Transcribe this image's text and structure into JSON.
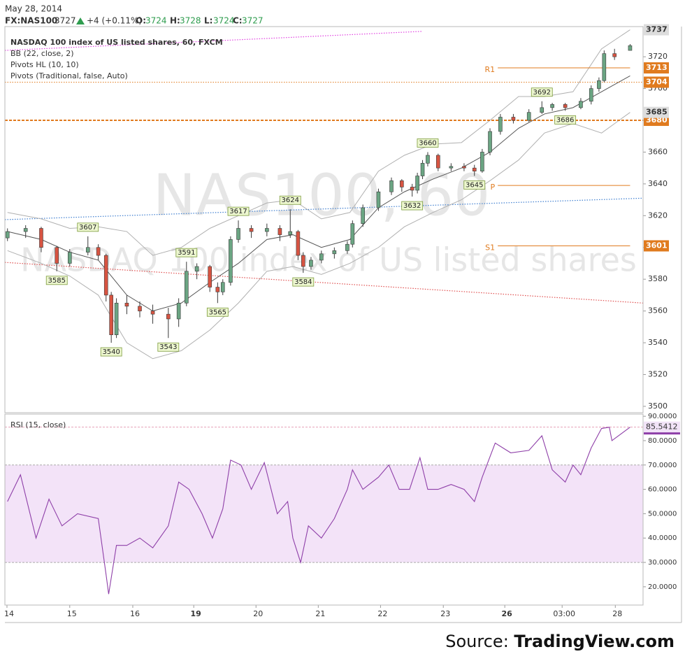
{
  "header": {
    "date": "May 28, 2014",
    "symbol": "FX:NAS100",
    "last": 3727,
    "change": "+4 (+0.11%)",
    "open_label": "O:",
    "open": 3724,
    "high_label": "H:",
    "high": 3728,
    "low_label": "L:",
    "low": 3724,
    "close_label": "C:",
    "close": 3727
  },
  "source": {
    "prefix": "Source:",
    "name": "TradingView.com"
  },
  "chart_data": [
    {
      "type": "candlestick",
      "title": "NASDAQ 100 index of US listed shares, 60, FXCM",
      "legend": [
        "BB (22, close, 2)",
        "Pivots HL (10, 10)",
        "Pivots (Traditional, false, Auto)"
      ],
      "watermark": [
        "NAS100, 60",
        "NASDAQ 100 index of US listed shares"
      ],
      "x": [
        1,
        8,
        14,
        20,
        25,
        32,
        36,
        39,
        41,
        43,
        47,
        52,
        57,
        63,
        67,
        70,
        74,
        79,
        82,
        84,
        87,
        90,
        95,
        101,
        106,
        110,
        113,
        115,
        118,
        122,
        127,
        132,
        134,
        138,
        144,
        149,
        153,
        157,
        159,
        161,
        163,
        167,
        172,
        177,
        181,
        184,
        187,
        191,
        196,
        202,
        207,
        211,
        216,
        222,
        226,
        229,
        231,
        235,
        241
      ],
      "open": [
        3606,
        3610,
        3612,
        3600,
        3590,
        3597,
        3600,
        3595,
        3570,
        3545,
        3565,
        3563,
        3560,
        3558,
        3555,
        3565,
        3585,
        3588,
        3575,
        3572,
        3578,
        3605,
        3612,
        3610,
        3612,
        3608,
        3610,
        3595,
        3588,
        3592,
        3596,
        3598,
        3602,
        3615,
        3625,
        3635,
        3642,
        3638,
        3636,
        3645,
        3653,
        3658,
        3650,
        3651,
        3650,
        3648,
        3660,
        3673,
        3682,
        3680,
        3685,
        3688,
        3690,
        3688,
        3692,
        3700,
        3705,
        3722,
        3724
      ],
      "high": [
        3612,
        3614,
        3613,
        3601,
        3599,
        3607,
        3602,
        3596,
        3572,
        3568,
        3570,
        3566,
        3564,
        3562,
        3568,
        3591,
        3590,
        3589,
        3578,
        3580,
        3607,
        3617,
        3614,
        3615,
        3614,
        3624,
        3611,
        3597,
        3594,
        3598,
        3600,
        3604,
        3617,
        3627,
        3637,
        3644,
        3643,
        3640,
        3647,
        3655,
        3660,
        3659,
        3653,
        3653,
        3652,
        3662,
        3675,
        3684,
        3684,
        3687,
        3692,
        3691,
        3691,
        3694,
        3702,
        3707,
        3724,
        3725,
        3728
      ],
      "low": [
        3604,
        3606,
        3597,
        3585,
        3588,
        3595,
        3592,
        3566,
        3540,
        3543,
        3558,
        3556,
        3552,
        3543,
        3550,
        3563,
        3580,
        3572,
        3565,
        3570,
        3576,
        3603,
        3606,
        3607,
        3604,
        3606,
        3592,
        3584,
        3586,
        3590,
        3593,
        3596,
        3600,
        3613,
        3623,
        3633,
        3635,
        3632,
        3634,
        3643,
        3651,
        3648,
        3648,
        3648,
        3645,
        3647,
        3658,
        3671,
        3678,
        3679,
        3684,
        3686,
        3686,
        3687,
        3690,
        3698,
        3704,
        3718,
        3724
      ],
      "close": [
        3610,
        3612,
        3600,
        3590,
        3597,
        3600,
        3595,
        3570,
        3545,
        3565,
        3563,
        3560,
        3558,
        3555,
        3565,
        3585,
        3588,
        3575,
        3572,
        3578,
        3605,
        3612,
        3610,
        3612,
        3608,
        3610,
        3595,
        3588,
        3592,
        3596,
        3598,
        3602,
        3615,
        3625,
        3635,
        3642,
        3638,
        3636,
        3645,
        3653,
        3658,
        3650,
        3651,
        3650,
        3648,
        3660,
        3673,
        3682,
        3680,
        3685,
        3688,
        3690,
        3688,
        3692,
        3700,
        3705,
        3722,
        3720,
        3727
      ],
      "up_color": "#6ba583",
      "down_color": "#d75442",
      "wick_color": "#3a3a3a",
      "overlays": [
        {
          "x": [
            1,
            14,
            25,
            36,
            47,
            57,
            68,
            79,
            90,
            101,
            111,
            122,
            133,
            144,
            154,
            165,
            176,
            187,
            198,
            208,
            219,
            230,
            241
          ],
          "values": [
            3622,
            3618,
            3612,
            3613,
            3610,
            3595,
            3600,
            3612,
            3620,
            3628,
            3630,
            3618,
            3622,
            3648,
            3658,
            3665,
            3666,
            3680,
            3695,
            3695,
            3698,
            3725,
            3737
          ],
          "color": "#b0b0b0",
          "badge": true
        },
        {
          "x": [
            1,
            14,
            25,
            36,
            47,
            57,
            68,
            79,
            90,
            101,
            111,
            122,
            133,
            144,
            154,
            165,
            176,
            187,
            198,
            208,
            219,
            230,
            241
          ],
          "values": [
            3610,
            3605,
            3597,
            3592,
            3570,
            3560,
            3565,
            3578,
            3590,
            3605,
            3608,
            3600,
            3605,
            3625,
            3635,
            3643,
            3650,
            3660,
            3675,
            3684,
            3688,
            3698,
            3708
          ],
          "color": "#555555",
          "badge": false
        },
        {
          "x": [
            1,
            14,
            25,
            36,
            47,
            57,
            68,
            79,
            90,
            101,
            111,
            122,
            133,
            144,
            154,
            165,
            176,
            187,
            198,
            208,
            219,
            230,
            241
          ],
          "values": [
            3598,
            3590,
            3582,
            3570,
            3540,
            3530,
            3535,
            3548,
            3565,
            3585,
            3588,
            3583,
            3590,
            3600,
            3613,
            3622,
            3630,
            3642,
            3655,
            3672,
            3678,
            3672,
            3685
          ],
          "color": "#b0b0b0",
          "badge": true
        }
      ],
      "trend_lines": [
        {
          "x": [
            0,
            161
          ],
          "y": [
            3724,
            3736
          ],
          "color": "#e040e0"
        },
        {
          "x": [
            0,
            246
          ],
          "y": [
            3617.5,
            3631
          ],
          "color": "#3f7fd0"
        },
        {
          "x": [
            0,
            246
          ],
          "y": [
            3590.6,
            3565
          ],
          "color": "#e05050"
        }
      ],
      "pivot_labels": [
        {
          "x": 20,
          "value": 3585,
          "position": "below"
        },
        {
          "x": 32,
          "value": 3607,
          "position": "above"
        },
        {
          "x": 41,
          "value": 3540,
          "position": "below"
        },
        {
          "x": 63,
          "value": 3543,
          "position": "below"
        },
        {
          "x": 70,
          "value": 3591,
          "position": "above"
        },
        {
          "x": 82,
          "value": 3565,
          "position": "below"
        },
        {
          "x": 90,
          "value": 3617,
          "position": "above"
        },
        {
          "x": 110,
          "value": 3624,
          "position": "above"
        },
        {
          "x": 115,
          "value": 3584,
          "position": "below"
        },
        {
          "x": 157,
          "value": 3632,
          "position": "below"
        },
        {
          "x": 163,
          "value": 3660,
          "position": "above"
        },
        {
          "x": 181,
          "value": 3645,
          "position": "below"
        },
        {
          "x": 207,
          "value": 3692,
          "position": "above"
        },
        {
          "x": 216,
          "value": 3686,
          "position": "below"
        }
      ],
      "pivot_color": "#e07b1f",
      "pivot_xlim": [
        190,
        241
      ],
      "pivots": [
        {
          "label": "R1",
          "value": 3713,
          "badge": true
        },
        {
          "label": "P",
          "value": 3639,
          "badge": false
        },
        {
          "label": "S1",
          "value": 3601,
          "badge": true
        }
      ],
      "horizontal_lines": [
        {
          "value": 3704,
          "style": "dotted"
        },
        {
          "value": 3680,
          "style": "dashed"
        }
      ],
      "xlim": [
        0,
        246
      ],
      "ylim": [
        3496,
        3739
      ],
      "yticks": [
        3500,
        3520,
        3540,
        3560,
        3580,
        3600,
        3620,
        3640,
        3660,
        3680,
        3700,
        3720
      ]
    },
    {
      "type": "line",
      "title": "RSI (15, close)",
      "color": "#8e3fa8",
      "band_color": "#f3e3f8",
      "x": [
        1,
        6,
        12,
        17,
        22,
        28,
        36,
        39,
        40,
        43,
        47,
        52,
        57,
        63,
        67,
        71,
        76,
        80,
        84,
        87,
        91,
        95,
        100,
        105,
        109,
        111,
        114,
        117,
        122,
        127,
        132,
        134,
        138,
        144,
        148,
        152,
        156,
        160,
        163,
        167,
        172,
        177,
        181,
        184,
        189,
        195,
        202,
        207,
        211,
        216,
        219,
        222,
        226,
        230,
        233,
        234,
        241
      ],
      "values": [
        55,
        66,
        40,
        56,
        45,
        50,
        48,
        25,
        17,
        37,
        37,
        40,
        36,
        45,
        63,
        60,
        50,
        40,
        52,
        72,
        70,
        60,
        71,
        50,
        55,
        40,
        30,
        45,
        40,
        48,
        60,
        68,
        60,
        65,
        70,
        60,
        60,
        73,
        60,
        60,
        62,
        60,
        55,
        65,
        79,
        75,
        76,
        82,
        68,
        63,
        70,
        66,
        77,
        85,
        85.5,
        80,
        85.5412
      ],
      "overbought": 70,
      "oversold": 30,
      "xlim": [
        0,
        246
      ],
      "ylim": [
        12.5,
        90.9
      ],
      "yticks": [
        {
          "value": 20,
          "label": "20.0000"
        },
        {
          "value": 30,
          "label": "30.0000"
        },
        {
          "value": 40,
          "label": "40.0000"
        },
        {
          "value": 50,
          "label": "50.0000"
        },
        {
          "value": 60,
          "label": "60.0000"
        },
        {
          "value": 70,
          "label": "70.0000"
        },
        {
          "value": 80,
          "label": "80.0000"
        },
        {
          "value": 90,
          "label": "90.0000"
        }
      ],
      "xticks": [
        {
          "value": 0.8,
          "label": "14",
          "bold": false
        },
        {
          "value": 25,
          "label": "15",
          "bold": false
        },
        {
          "value": 49.3,
          "label": "16",
          "bold": false
        },
        {
          "value": 72.8,
          "label": "19",
          "bold": true
        },
        {
          "value": 96.8,
          "label": "20",
          "bold": false
        },
        {
          "value": 120.8,
          "label": "21",
          "bold": false
        },
        {
          "value": 144.8,
          "label": "22",
          "bold": false
        },
        {
          "value": 169,
          "label": "23",
          "bold": false
        },
        {
          "value": 192.7,
          "label": "26",
          "bold": true
        },
        {
          "value": 214.8,
          "label": "03:00",
          "bold": false
        },
        {
          "value": 235.3,
          "label": "28",
          "bold": false
        }
      ]
    }
  ]
}
